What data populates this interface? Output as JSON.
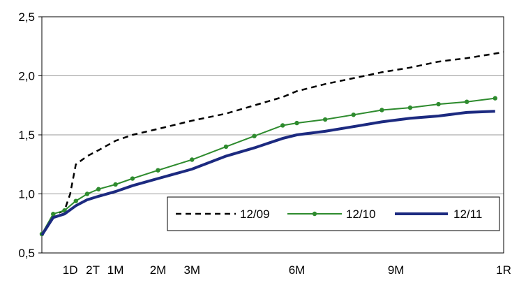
{
  "chart_data": {
    "type": "line",
    "title": "",
    "xlabel": "",
    "ylabel": "",
    "ylim": [
      0.5,
      2.5
    ],
    "yticks": [
      0.5,
      1.0,
      1.5,
      2.0,
      2.5
    ],
    "ytick_labels": [
      "0,5",
      "1,0",
      "1,5",
      "2,0",
      "2,5"
    ],
    "x_range_months": [
      0,
      12
    ],
    "xticks": [
      {
        "label": "1D",
        "months": 1
      },
      {
        "label": "2T",
        "months": 1.8
      },
      {
        "label": "1M",
        "months": 2.6
      },
      {
        "label": "2M",
        "months": 4.1
      },
      {
        "label": "3M",
        "months": 5.3
      },
      {
        "label": "6M",
        "months": 9
      },
      {
        "label": "9M",
        "months": 12.5
      },
      {
        "label": "1R",
        "months": 16.3
      }
    ],
    "x_domain": [
      0,
      16.3
    ],
    "grid": "horizontal",
    "legend_position": "bottom-right",
    "series": [
      {
        "name": "12/09",
        "color": "#000000",
        "style": "dashed",
        "x": [
          0,
          0.4,
          0.8,
          1.0,
          1.2,
          1.6,
          2.0,
          2.6,
          3.2,
          4.1,
          5.3,
          6.5,
          7.5,
          8.5,
          9.0,
          10.0,
          11.0,
          12.0,
          13.0,
          14.0,
          15.0,
          16.3
        ],
        "y": [
          0.65,
          0.82,
          0.86,
          1.0,
          1.25,
          1.32,
          1.37,
          1.45,
          1.5,
          1.55,
          1.62,
          1.68,
          1.75,
          1.82,
          1.87,
          1.93,
          1.98,
          2.03,
          2.07,
          2.12,
          2.15,
          2.2
        ]
      },
      {
        "name": "12/10",
        "color": "#2e8b2e",
        "style": "solid-markers",
        "x": [
          0,
          0.4,
          0.8,
          1.2,
          1.6,
          2.0,
          2.6,
          3.2,
          4.1,
          5.3,
          6.5,
          7.5,
          8.5,
          9.0,
          10.0,
          11.0,
          12.0,
          13.0,
          14.0,
          15.0,
          16.0
        ],
        "y": [
          0.66,
          0.83,
          0.86,
          0.94,
          1.0,
          1.04,
          1.08,
          1.13,
          1.2,
          1.29,
          1.4,
          1.49,
          1.58,
          1.6,
          1.63,
          1.67,
          1.71,
          1.73,
          1.76,
          1.78,
          1.81
        ]
      },
      {
        "name": "12/11",
        "color": "#1c2a80",
        "style": "solid-thick",
        "x": [
          0,
          0.4,
          0.8,
          1.2,
          1.6,
          2.0,
          2.6,
          3.2,
          4.1,
          5.3,
          6.5,
          7.5,
          8.5,
          9.0,
          10.0,
          11.0,
          12.0,
          13.0,
          14.0,
          15.0,
          16.0
        ],
        "y": [
          0.65,
          0.8,
          0.83,
          0.9,
          0.95,
          0.98,
          1.02,
          1.07,
          1.13,
          1.21,
          1.32,
          1.39,
          1.47,
          1.5,
          1.53,
          1.57,
          1.61,
          1.64,
          1.66,
          1.69,
          1.7
        ]
      }
    ]
  }
}
